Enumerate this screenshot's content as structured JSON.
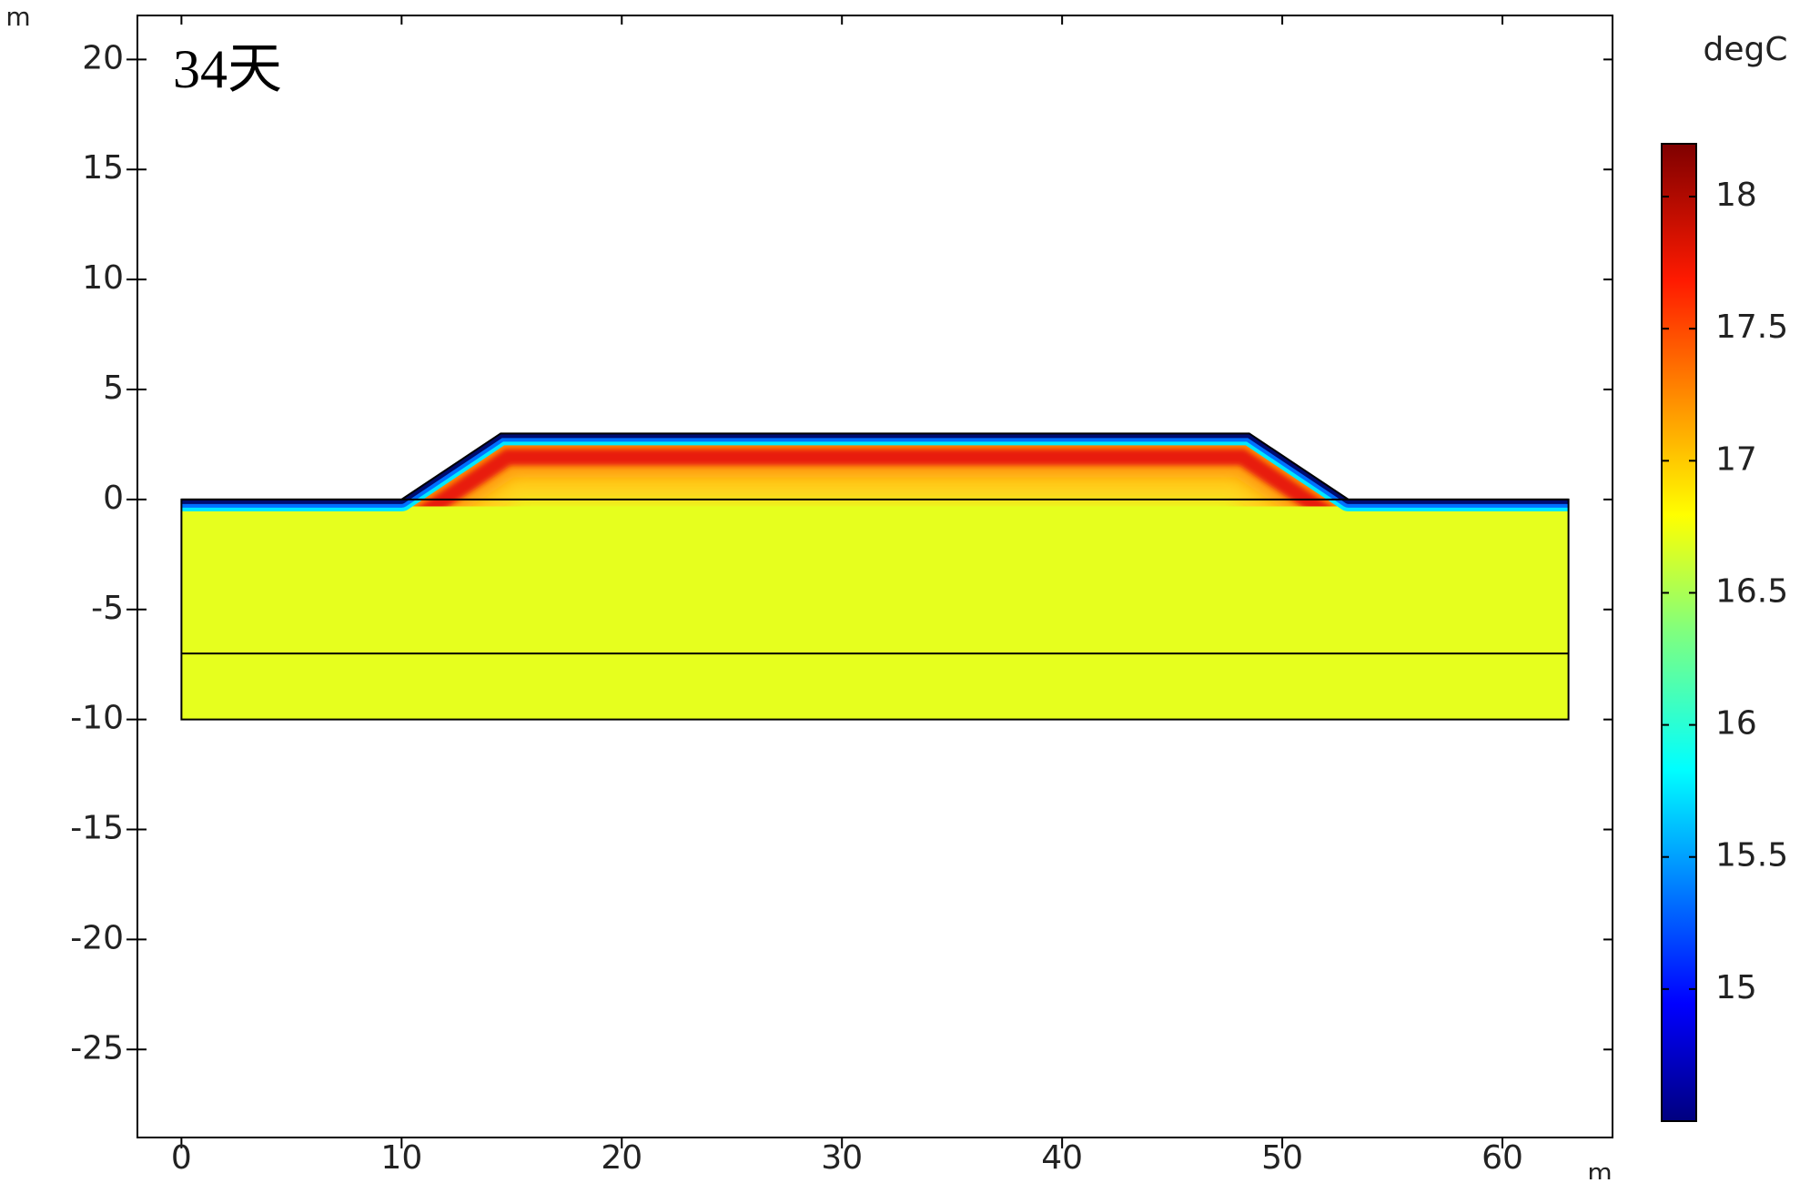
{
  "chart_data": {
    "type": "contour",
    "title": "34天",
    "x_label": "m",
    "y_label": "m",
    "xlim": [
      -2,
      65
    ],
    "ylim": [
      -29,
      22
    ],
    "xticks": [
      0,
      10,
      20,
      30,
      40,
      50,
      60
    ],
    "yticks": [
      -25,
      -20,
      -15,
      -10,
      -5,
      0,
      5,
      10,
      15,
      20
    ],
    "boundary": {
      "x": [
        0,
        0,
        10,
        14.5,
        48.5,
        53,
        63,
        63
      ],
      "y": [
        -10,
        0,
        0,
        3,
        3,
        0,
        0,
        -10
      ]
    },
    "interfaces": [
      {
        "x": [
          0,
          63
        ],
        "y": [
          0,
          0
        ]
      },
      {
        "x": [
          0,
          63
        ],
        "y": [
          -7,
          -7
        ]
      }
    ],
    "colorbar": {
      "label": "degC",
      "lim": [
        14.5,
        18.2
      ],
      "ticks": [
        15,
        15.5,
        16,
        16.5,
        17,
        17.5,
        18
      ]
    }
  }
}
